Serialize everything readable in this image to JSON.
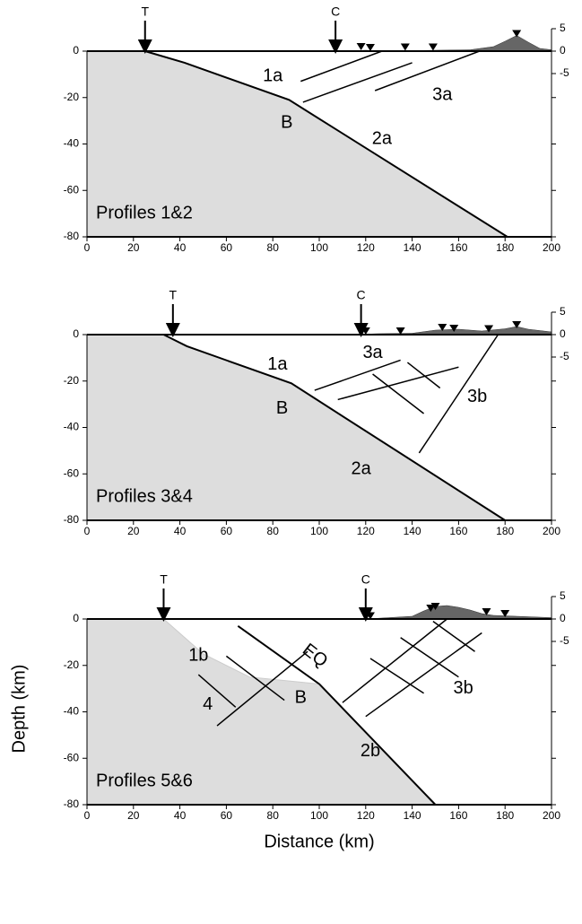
{
  "chart_data": [
    {
      "type": "section",
      "xlim": [
        0,
        200
      ],
      "ylim": [
        -80,
        0
      ],
      "y2lim": [
        -5,
        5
      ],
      "xticks": [
        0,
        20,
        40,
        60,
        80,
        100,
        120,
        140,
        160,
        180,
        200
      ],
      "yticks": [
        0,
        -20,
        -40,
        -60,
        -80
      ],
      "y2ticks": [
        5,
        0,
        -5
      ],
      "arrows": [
        {
          "label": "T",
          "x": 25
        },
        {
          "label": "C",
          "x": 107
        }
      ],
      "slab": {
        "x": [
          25,
          42,
          87,
          181
        ],
        "y": [
          0,
          -5,
          -21,
          -80
        ]
      },
      "faults": [
        {
          "x": [
            92,
            127
          ],
          "y": [
            -13,
            0
          ]
        },
        {
          "x": [
            93,
            140
          ],
          "y": [
            -22,
            -5
          ]
        },
        {
          "x": [
            124,
            169
          ],
          "y": [
            -17,
            0
          ]
        }
      ],
      "topography": {
        "x": [
          0,
          110,
          120,
          130,
          150,
          165,
          175,
          180,
          185,
          190,
          195,
          200
        ],
        "y2": [
          0,
          0,
          0.2,
          0,
          0.2,
          0.3,
          1,
          2.2,
          3.5,
          2,
          0.6,
          0.3
        ]
      },
      "stations": {
        "x": [
          118,
          122,
          137,
          149,
          185
        ],
        "y2": [
          0.6,
          0.4,
          0.5,
          0.5,
          3.5
        ]
      },
      "annotations": [
        "1a",
        "B",
        "2a",
        "3a",
        "Profiles 1&2"
      ]
    },
    {
      "type": "section",
      "xlim": [
        0,
        200
      ],
      "ylim": [
        -80,
        0
      ],
      "y2lim": [
        -5,
        5
      ],
      "xticks": [
        0,
        20,
        40,
        60,
        80,
        100,
        120,
        140,
        160,
        180,
        200
      ],
      "yticks": [
        0,
        -20,
        -40,
        -60,
        -80
      ],
      "y2ticks": [
        5,
        0,
        -5
      ],
      "arrows": [
        {
          "label": "T",
          "x": 37
        },
        {
          "label": "C",
          "x": 118
        }
      ],
      "slab": {
        "x": [
          33,
          43,
          88,
          180
        ],
        "y": [
          0,
          -5,
          -21,
          -80
        ]
      },
      "faults": [
        {
          "x": [
            98,
            135
          ],
          "y": [
            -24,
            -11
          ]
        },
        {
          "x": [
            108,
            160
          ],
          "y": [
            -28,
            -14
          ]
        },
        {
          "x": [
            123,
            145
          ],
          "y": [
            -17,
            -34
          ]
        },
        {
          "x": [
            138,
            152
          ],
          "y": [
            -12,
            -23
          ]
        },
        {
          "x": [
            143,
            177
          ],
          "y": [
            -51,
            0
          ]
        }
      ],
      "topography": {
        "x": [
          0,
          115,
          125,
          140,
          150,
          160,
          170,
          180,
          185,
          190,
          200
        ],
        "y2": [
          0,
          0,
          0.2,
          0.3,
          1,
          1.2,
          0.8,
          1.3,
          1.8,
          1.2,
          0.6
        ]
      },
      "stations": {
        "x": [
          120,
          135,
          153,
          158,
          173,
          185
        ],
        "y2": [
          0.4,
          0.4,
          1.2,
          1,
          0.9,
          1.8
        ]
      },
      "annotations": [
        "1a",
        "B",
        "2a",
        "3a",
        "3b",
        "Profiles 3&4"
      ]
    },
    {
      "type": "section",
      "xlim": [
        0,
        200
      ],
      "ylim": [
        -80,
        0
      ],
      "y2lim": [
        -5,
        5
      ],
      "xticks": [
        0,
        20,
        40,
        60,
        80,
        100,
        120,
        140,
        160,
        180,
        200
      ],
      "yticks": [
        0,
        -20,
        -40,
        -60,
        -80
      ],
      "y2ticks": [
        5,
        0,
        -5
      ],
      "xlabel": "Distance (km)",
      "ylabel": "Depth (km)",
      "arrows": [
        {
          "label": "T",
          "x": 33
        },
        {
          "label": "C",
          "x": 120
        }
      ],
      "slab": {
        "x": [
          65,
          100,
          150
        ],
        "y": [
          -3,
          -28,
          -80
        ]
      },
      "shelf": {
        "x": [
          33,
          50,
          70,
          90,
          100
        ],
        "y": [
          0,
          -15,
          -25,
          -27,
          -28
        ]
      },
      "faults": [
        {
          "x": [
            56,
            95
          ],
          "y": [
            -46,
            -14
          ]
        },
        {
          "x": [
            48,
            64
          ],
          "y": [
            -24,
            -38
          ]
        },
        {
          "x": [
            60,
            85
          ],
          "y": [
            -16,
            -35
          ]
        },
        {
          "x": [
            110,
            155
          ],
          "y": [
            -36,
            0
          ]
        },
        {
          "x": [
            120,
            170
          ],
          "y": [
            -42,
            -6
          ]
        },
        {
          "x": [
            122,
            145
          ],
          "y": [
            -17,
            -32
          ]
        },
        {
          "x": [
            135,
            160
          ],
          "y": [
            -8,
            -25
          ]
        },
        {
          "x": [
            149,
            167
          ],
          "y": [
            -1,
            -14
          ]
        }
      ],
      "topography": {
        "x": [
          0,
          120,
          130,
          140,
          145,
          150,
          155,
          160,
          165,
          170,
          175,
          185,
          200
        ],
        "y2": [
          0,
          0,
          0.3,
          0.6,
          1.8,
          2.8,
          3,
          2.6,
          2,
          1.2,
          0.8,
          0.6,
          0.3
        ]
      },
      "stations": {
        "x": [
          122,
          148,
          150,
          172,
          180
        ],
        "y2": [
          0.3,
          2,
          2.4,
          1.2,
          0.8
        ]
      },
      "annotations": [
        "1b",
        "4",
        "EQ",
        "B",
        "2b",
        "3b",
        "Profiles 5&6"
      ]
    }
  ]
}
